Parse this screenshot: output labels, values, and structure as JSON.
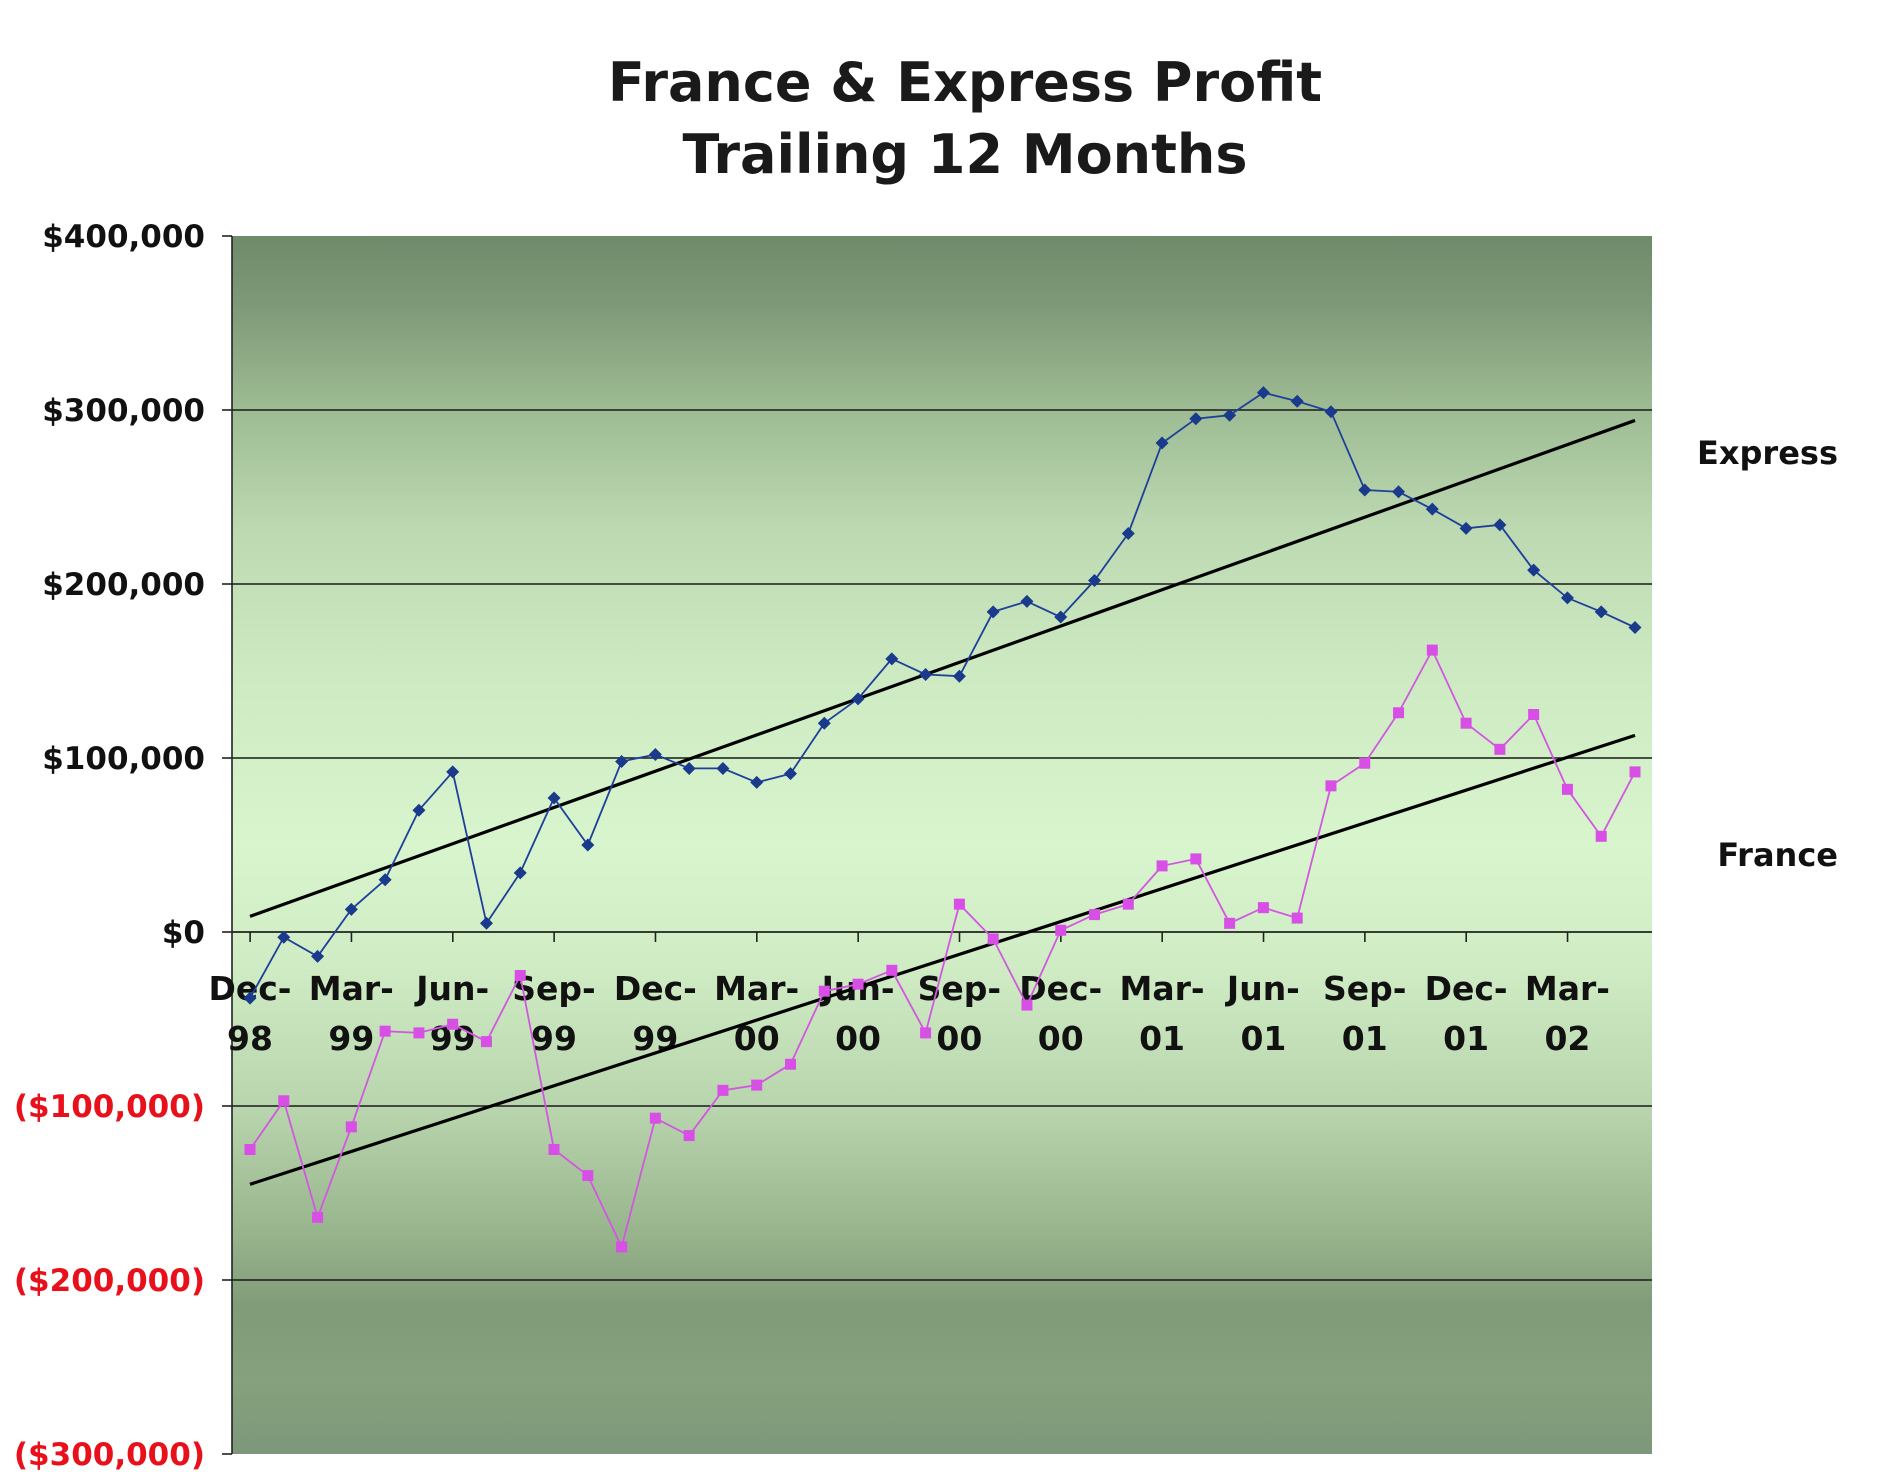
{
  "chart_data": {
    "type": "line",
    "title_lines": [
      "France & Express Profit",
      "Trailing 12 Months"
    ],
    "ylim": [
      -300000,
      400000
    ],
    "yticks": [
      {
        "value": 400000,
        "label": "$400,000",
        "color": "#111111"
      },
      {
        "value": 300000,
        "label": "$300,000",
        "color": "#111111"
      },
      {
        "value": 200000,
        "label": "$200,000",
        "color": "#111111"
      },
      {
        "value": 100000,
        "label": "$100,000",
        "color": "#111111"
      },
      {
        "value": 0,
        "label": "$0",
        "color": "#111111"
      },
      {
        "value": -100000,
        "label": "($100,000)",
        "color": "#e8101a"
      },
      {
        "value": -200000,
        "label": "($200,000)",
        "color": "#e8101a"
      },
      {
        "value": -300000,
        "label": "($300,000)",
        "color": "#e8101a"
      }
    ],
    "gridlines": [
      300000,
      200000,
      100000,
      -100000,
      -200000
    ],
    "x_categories": [
      "Dec-98",
      "Jan-99",
      "Feb-99",
      "Mar-99",
      "Apr-99",
      "May-99",
      "Jun-99",
      "Jul-99",
      "Aug-99",
      "Sep-99",
      "Oct-99",
      "Nov-99",
      "Dec-99",
      "Jan-00",
      "Feb-00",
      "Mar-00",
      "Apr-00",
      "May-00",
      "Jun-00",
      "Jul-00",
      "Aug-00",
      "Sep-00",
      "Oct-00",
      "Nov-00",
      "Dec-00",
      "Jan-01",
      "Feb-01",
      "Mar-01",
      "Apr-01",
      "May-01",
      "Jun-01",
      "Jul-01",
      "Aug-01",
      "Sep-01",
      "Oct-01",
      "Nov-01",
      "Dec-01",
      "Jan-02",
      "Feb-02",
      "Mar-02",
      "Apr-02",
      "May-02"
    ],
    "x_tick_labels": [
      {
        "index": 0,
        "line1": "Dec-",
        "line2": "98"
      },
      {
        "index": 3,
        "line1": "Mar-",
        "line2": "99"
      },
      {
        "index": 6,
        "line1": "Jun-",
        "line2": "99"
      },
      {
        "index": 9,
        "line1": "Sep-",
        "line2": "99"
      },
      {
        "index": 12,
        "line1": "Dec-",
        "line2": "99"
      },
      {
        "index": 15,
        "line1": "Mar-",
        "line2": "00"
      },
      {
        "index": 18,
        "line1": "Jun-",
        "line2": "00"
      },
      {
        "index": 21,
        "line1": "Sep-",
        "line2": "00"
      },
      {
        "index": 24,
        "line1": "Dec-",
        "line2": "00"
      },
      {
        "index": 27,
        "line1": "Mar-",
        "line2": "01"
      },
      {
        "index": 30,
        "line1": "Jun-",
        "line2": "01"
      },
      {
        "index": 33,
        "line1": "Sep-",
        "line2": "01"
      },
      {
        "index": 36,
        "line1": "Dec-",
        "line2": "01"
      },
      {
        "index": 39,
        "line1": "Mar-",
        "line2": "02"
      }
    ],
    "series": [
      {
        "name": "Express",
        "color": "#1f3f9a",
        "marker_color": "#1a3a8c",
        "marker": "diamond",
        "values": [
          -38000,
          -3000,
          -14000,
          13000,
          30000,
          70000,
          92000,
          5000,
          34000,
          77000,
          50000,
          98000,
          102000,
          94000,
          94000,
          86000,
          91000,
          120000,
          134000,
          157000,
          148000,
          147000,
          184000,
          190000,
          181000,
          202000,
          229000,
          281000,
          295000,
          297000,
          310000,
          305000,
          299000,
          254000,
          253000,
          243000,
          232000,
          234000,
          208000,
          192000,
          184000,
          175000
        ],
        "trend": {
          "start": 9000,
          "end": 294000
        }
      },
      {
        "name": "France",
        "color": "#d257e0",
        "marker_color": "#d84fe6",
        "marker": "square",
        "values": [
          -125000,
          -97000,
          -164000,
          -112000,
          -57000,
          -58000,
          -53000,
          -63000,
          -25000,
          -125000,
          -140000,
          -181000,
          -107000,
          -117000,
          -91000,
          -88000,
          -76000,
          -34000,
          -30000,
          -22000,
          -58000,
          16000,
          -4000,
          -42000,
          1000,
          10000,
          16000,
          38000,
          42000,
          5000,
          14000,
          8000,
          84000,
          97000,
          126000,
          162000,
          120000,
          105000,
          125000,
          82000,
          55000,
          92000
        ],
        "trend": {
          "start": -145000,
          "end": 113000
        }
      }
    ]
  }
}
